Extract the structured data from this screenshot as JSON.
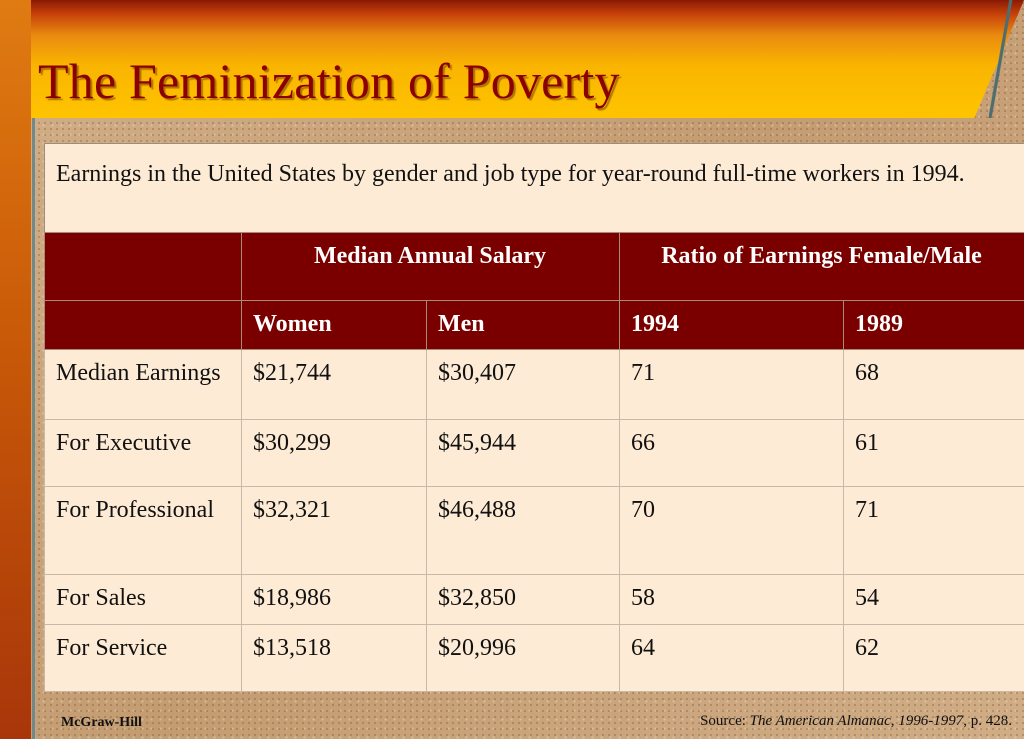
{
  "slide": {
    "title": "The Feminization of Poverty",
    "intro": "Earnings in the United States by gender and job type for year-round full-time workers in 1994."
  },
  "table": {
    "group_headers": {
      "empty": "",
      "salary": "Median Annual Salary",
      "ratio": "Ratio of Earnings Female/Male"
    },
    "sub_headers": [
      "",
      "Women",
      "Men",
      "1994",
      "1989"
    ],
    "rows": [
      [
        "Median Earnings",
        "$21,744",
        "$30,407",
        "71",
        "68"
      ],
      [
        "For Executive",
        "$30,299",
        "$45,944",
        "66",
        "61"
      ],
      [
        "For Professional",
        "$32,321",
        "$46,488",
        "70",
        "71"
      ],
      [
        "For Sales",
        "$18,986",
        "$32,850",
        "58",
        "54"
      ],
      [
        "For Service",
        "$13,518",
        "$20,996",
        "64",
        "62"
      ]
    ]
  },
  "footer": {
    "publisher": "McGraw-Hill",
    "source_prefix": "Source: ",
    "source_title": "The American Almanac, 1996-1997",
    "source_suffix": ", p. 428."
  }
}
